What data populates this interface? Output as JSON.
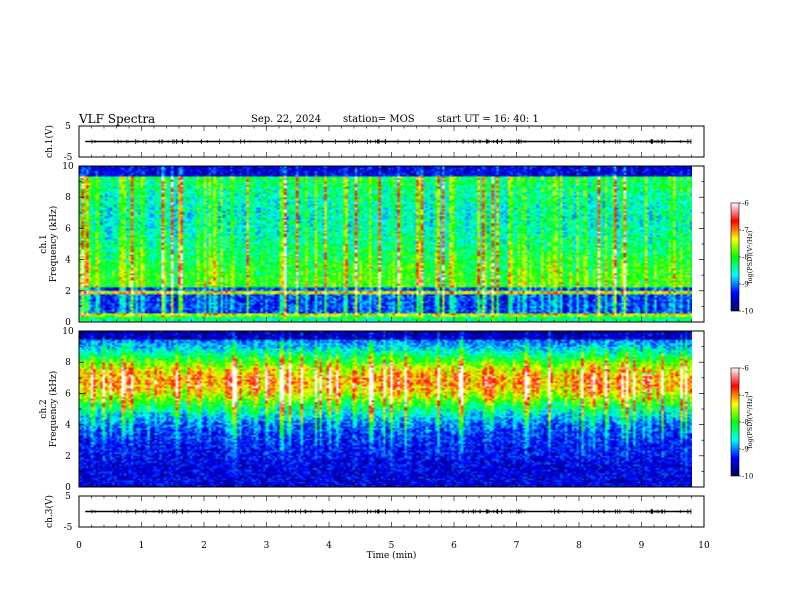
{
  "header": {
    "title": "VLF Spectra",
    "date": "Sep. 22, 2024",
    "station": "station= MOS",
    "start": "start  UT =   16: 40: 1"
  },
  "chart_data": [
    {
      "type": "line",
      "panel": "ch1-waveform",
      "ylabel": "ch.1(V)",
      "ylim": [
        -5,
        5
      ],
      "yticks": [
        "5",
        "-5"
      ],
      "xlim": [
        0,
        10
      ],
      "series": [
        {
          "baseline": 0,
          "values_note": ""
        }
      ],
      "baseline_value": 0
    },
    {
      "type": "heatmap",
      "panel": "ch1-spectrogram",
      "ylabel": "ch.1",
      "ylabel2": "Frequency (kHz)",
      "ylim": [
        0,
        10
      ],
      "yticks": [
        "0",
        "2",
        "4",
        "6",
        "8",
        "10"
      ],
      "xlim": [
        0,
        9.8
      ],
      "colorbar": {
        "label": "log(PSD)(V²/Hz)",
        "range": [
          -10,
          -6
        ],
        "ticks": [
          "-6",
          "-7",
          "-8",
          "-9",
          "-10"
        ],
        "colors": [
          "#00005a",
          "#0000ff",
          "#00ffff",
          "#00ff00",
          "#ffff00",
          "#ff0000",
          "#ffffff"
        ]
      },
      "bands_khz": [
        0.4,
        1.8,
        2.0,
        8.6,
        9.5
      ],
      "seed": 11
    },
    {
      "type": "heatmap",
      "panel": "ch2-spectrogram",
      "ylabel": "ch.2",
      "ylabel2": "Frequency (kHz)",
      "ylim": [
        0,
        10
      ],
      "yticks": [
        "0",
        "2",
        "4",
        "6",
        "8",
        "10"
      ],
      "xlim": [
        0,
        9.8
      ],
      "colorbar": {
        "label": "log(PSD)(V²/Hz)",
        "range": [
          -10,
          -6
        ],
        "ticks": [
          "-6",
          "-7",
          "-8",
          "-9",
          "-10"
        ],
        "colors": [
          "#00005a",
          "#0000ff",
          "#00ffff",
          "#00ff00",
          "#ffff00",
          "#ff0000",
          "#ffffff"
        ]
      },
      "peak_khz": 6.8,
      "seed": 29
    },
    {
      "type": "line",
      "panel": "ch3-waveform",
      "ylabel": "ch.3(V)",
      "ylim": [
        -5,
        5
      ],
      "yticks": [
        "5",
        "-5"
      ],
      "xlim": [
        0,
        10
      ],
      "baseline_value": 0
    }
  ],
  "xaxis": {
    "label": "Time  (min)",
    "ticks": [
      "0",
      "1",
      "2",
      "3",
      "4",
      "5",
      "6",
      "7",
      "8",
      "9",
      "10"
    ],
    "range": [
      0,
      10
    ]
  }
}
